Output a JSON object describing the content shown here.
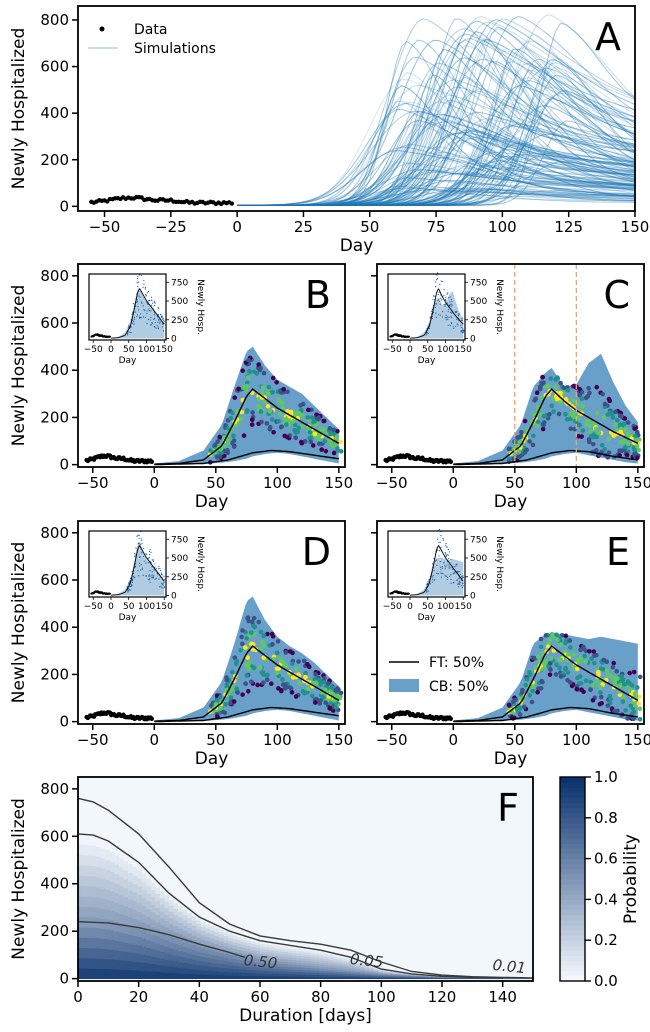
{
  "chart_data": [
    {
      "panel": "A",
      "type": "line",
      "xlabel": "Day",
      "ylabel": "Newly Hospitalized",
      "xlim": [
        -60,
        150
      ],
      "ylim": [
        -20,
        860
      ],
      "xticks": [
        "-50",
        "-25",
        "0",
        "25",
        "50",
        "75",
        "100",
        "125",
        "150"
      ],
      "yticks": [
        "0",
        "200",
        "400",
        "600",
        "800"
      ],
      "legend": {
        "placement": "top-left",
        "entries": [
          "Data",
          "Simulations"
        ]
      },
      "series": [
        {
          "name": "Data",
          "kind": "points",
          "x_range": [
            -55,
            -2
          ],
          "y_approx": [
            10,
            45
          ]
        },
        {
          "name": "Simulations",
          "kind": "lines",
          "count_approx": 150,
          "peak_day_range": [
            60,
            125
          ],
          "peak_max": 840
        }
      ],
      "colors": {
        "data": "#000000",
        "simulations": "#1f77b4"
      }
    },
    {
      "panel": "B",
      "type": "area",
      "xlabel": "Day",
      "ylabel": "Newly Hospitalized",
      "xlim": [
        -62,
        155
      ],
      "ylim": [
        -10,
        850
      ],
      "xticks": [
        "-50",
        "0",
        "50",
        "100",
        "150"
      ],
      "yticks": [
        "0",
        "200",
        "400",
        "600",
        "800"
      ],
      "band": {
        "x": [
          0,
          20,
          40,
          55,
          65,
          75,
          80,
          90,
          100,
          110,
          120,
          130,
          140,
          150
        ],
        "upper": [
          5,
          15,
          60,
          170,
          330,
          480,
          500,
          420,
          360,
          330,
          300,
          250,
          200,
          150
        ],
        "lower": [
          0,
          1,
          3,
          8,
          15,
          25,
          35,
          45,
          50,
          45,
          35,
          25,
          15,
          5
        ]
      },
      "median": {
        "x": [
          0,
          20,
          40,
          55,
          65,
          75,
          80,
          90,
          100,
          110,
          120,
          130,
          140,
          150
        ],
        "y": [
          2,
          5,
          20,
          80,
          180,
          290,
          320,
          280,
          240,
          210,
          180,
          150,
          120,
          90
        ]
      },
      "lower_line": {
        "x": [
          0,
          40,
          60,
          80,
          95,
          110,
          130,
          150
        ],
        "y": [
          0,
          5,
          20,
          50,
          60,
          55,
          40,
          25
        ]
      },
      "inset": {
        "xlabel": "Day",
        "ylabel": "Newly Hosp.",
        "xticks": [
          "-50",
          "0",
          "50",
          "100",
          "150"
        ],
        "yticks": [
          "0",
          "250",
          "500",
          "750"
        ]
      }
    },
    {
      "panel": "C",
      "type": "area",
      "xlabel": "Day",
      "xlim": [
        -62,
        155
      ],
      "ylim": [
        -10,
        850
      ],
      "xticks": [
        "-50",
        "0",
        "50",
        "100",
        "150"
      ],
      "vlines": [
        50,
        100
      ],
      "band": {
        "x": [
          0,
          20,
          40,
          55,
          65,
          75,
          80,
          90,
          100,
          110,
          120,
          130,
          140,
          150
        ],
        "upper": [
          5,
          15,
          60,
          170,
          330,
          390,
          410,
          330,
          340,
          430,
          470,
          350,
          250,
          180
        ],
        "lower": [
          0,
          1,
          3,
          8,
          15,
          25,
          35,
          45,
          50,
          40,
          30,
          20,
          10,
          5
        ]
      },
      "median": {
        "x": [
          0,
          20,
          40,
          55,
          65,
          75,
          80,
          90,
          100,
          110,
          120,
          130,
          140,
          150
        ],
        "y": [
          2,
          5,
          20,
          80,
          180,
          290,
          320,
          270,
          230,
          200,
          170,
          140,
          115,
          90
        ]
      },
      "lower_line": {
        "x": [
          0,
          40,
          60,
          80,
          95,
          110,
          130,
          150
        ],
        "y": [
          0,
          5,
          20,
          50,
          60,
          55,
          35,
          20
        ]
      },
      "inset": {
        "xlabel": "Day",
        "ylabel": "Newly Hosp.",
        "xticks": [
          "-50",
          "0",
          "50",
          "100",
          "150"
        ],
        "yticks": [
          "0",
          "250",
          "500",
          "750"
        ]
      }
    },
    {
      "panel": "D",
      "type": "area",
      "xlabel": "Day",
      "ylabel": "Newly Hospitalized",
      "xlim": [
        -62,
        155
      ],
      "ylim": [
        -10,
        850
      ],
      "xticks": [
        "-50",
        "0",
        "50",
        "100",
        "150"
      ],
      "yticks": [
        "0",
        "200",
        "400",
        "600",
        "800"
      ],
      "band": {
        "x": [
          0,
          20,
          40,
          55,
          65,
          75,
          80,
          90,
          100,
          110,
          120,
          130,
          140,
          150
        ],
        "upper": [
          5,
          15,
          60,
          170,
          330,
          510,
          530,
          430,
          360,
          320,
          290,
          250,
          200,
          150
        ],
        "lower": [
          0,
          1,
          3,
          8,
          15,
          25,
          35,
          45,
          50,
          45,
          35,
          25,
          15,
          5
        ]
      },
      "median": {
        "x": [
          0,
          20,
          40,
          55,
          65,
          75,
          80,
          90,
          100,
          110,
          120,
          130,
          140,
          150
        ],
        "y": [
          2,
          5,
          20,
          80,
          180,
          290,
          320,
          280,
          240,
          210,
          180,
          150,
          120,
          90
        ]
      },
      "lower_line": {
        "x": [
          0,
          40,
          60,
          80,
          95,
          110,
          130,
          150
        ],
        "y": [
          0,
          5,
          20,
          50,
          60,
          55,
          40,
          25
        ]
      },
      "inset": {
        "xlabel": "Day",
        "ylabel": "Newly Hosp.",
        "xticks": [
          "-50",
          "0",
          "50",
          "100",
          "150"
        ],
        "yticks": [
          "0",
          "250",
          "500",
          "750"
        ]
      }
    },
    {
      "panel": "E",
      "type": "area",
      "xlabel": "Day",
      "xlim": [
        -62,
        155
      ],
      "ylim": [
        -10,
        850
      ],
      "xticks": [
        "-50",
        "0",
        "50",
        "100",
        "150"
      ],
      "legend": {
        "placement": "lower-left",
        "entries": [
          "FT: 50%",
          "CB: 50%"
        ]
      },
      "band": {
        "x": [
          0,
          20,
          40,
          55,
          65,
          75,
          80,
          90,
          100,
          110,
          120,
          130,
          140,
          150
        ],
        "upper": [
          5,
          15,
          60,
          170,
          330,
          370,
          375,
          370,
          360,
          350,
          360,
          350,
          340,
          330
        ],
        "lower": [
          0,
          1,
          3,
          8,
          15,
          25,
          35,
          45,
          50,
          40,
          30,
          20,
          10,
          5
        ]
      },
      "median": {
        "x": [
          0,
          20,
          40,
          55,
          65,
          75,
          80,
          90,
          100,
          110,
          120,
          130,
          140,
          150
        ],
        "y": [
          2,
          5,
          20,
          80,
          180,
          290,
          320,
          280,
          240,
          210,
          180,
          150,
          120,
          90
        ]
      },
      "lower_line": {
        "x": [
          0,
          40,
          60,
          80,
          95,
          110,
          130,
          150
        ],
        "y": [
          0,
          5,
          20,
          50,
          60,
          55,
          35,
          20
        ]
      },
      "inset": {
        "xlabel": "Day",
        "ylabel": "Newly Hosp.",
        "xticks": [
          "-50",
          "0",
          "50",
          "100",
          "150"
        ],
        "yticks": [
          "0",
          "250",
          "500",
          "750"
        ]
      }
    },
    {
      "panel": "F",
      "type": "heatmap",
      "xlabel": "Duration [days]",
      "ylabel": "Newly Hospitalized",
      "xlim": [
        0,
        150
      ],
      "ylim": [
        -10,
        850
      ],
      "xticks": [
        "0",
        "20",
        "40",
        "60",
        "80",
        "100",
        "120",
        "140"
      ],
      "yticks": [
        "0",
        "200",
        "400",
        "600",
        "800"
      ],
      "colorbar": {
        "label": "Probability",
        "range": [
          0,
          1
        ],
        "ticks": [
          "0.0",
          "0.2",
          "0.4",
          "0.6",
          "0.8",
          "1.0"
        ]
      },
      "contours": [
        {
          "level": "0.01",
          "x": [
            0,
            5,
            10,
            20,
            30,
            40,
            50,
            60,
            70,
            80,
            90,
            100,
            110,
            120,
            130,
            140,
            150
          ],
          "y": [
            760,
            745,
            710,
            610,
            470,
            320,
            230,
            180,
            160,
            145,
            120,
            70,
            30,
            15,
            8,
            5,
            3
          ]
        },
        {
          "level": "0.05",
          "x": [
            0,
            5,
            10,
            20,
            30,
            40,
            50,
            60,
            70,
            80,
            90,
            100,
            110,
            120,
            130,
            140
          ],
          "y": [
            610,
            605,
            580,
            490,
            360,
            260,
            200,
            160,
            140,
            120,
            90,
            40,
            20,
            10,
            5,
            3
          ]
        },
        {
          "level": "0.50",
          "x": [
            0,
            10,
            20,
            30,
            40,
            50,
            55
          ],
          "y": [
            240,
            235,
            215,
            185,
            145,
            110,
            90
          ]
        }
      ]
    }
  ]
}
